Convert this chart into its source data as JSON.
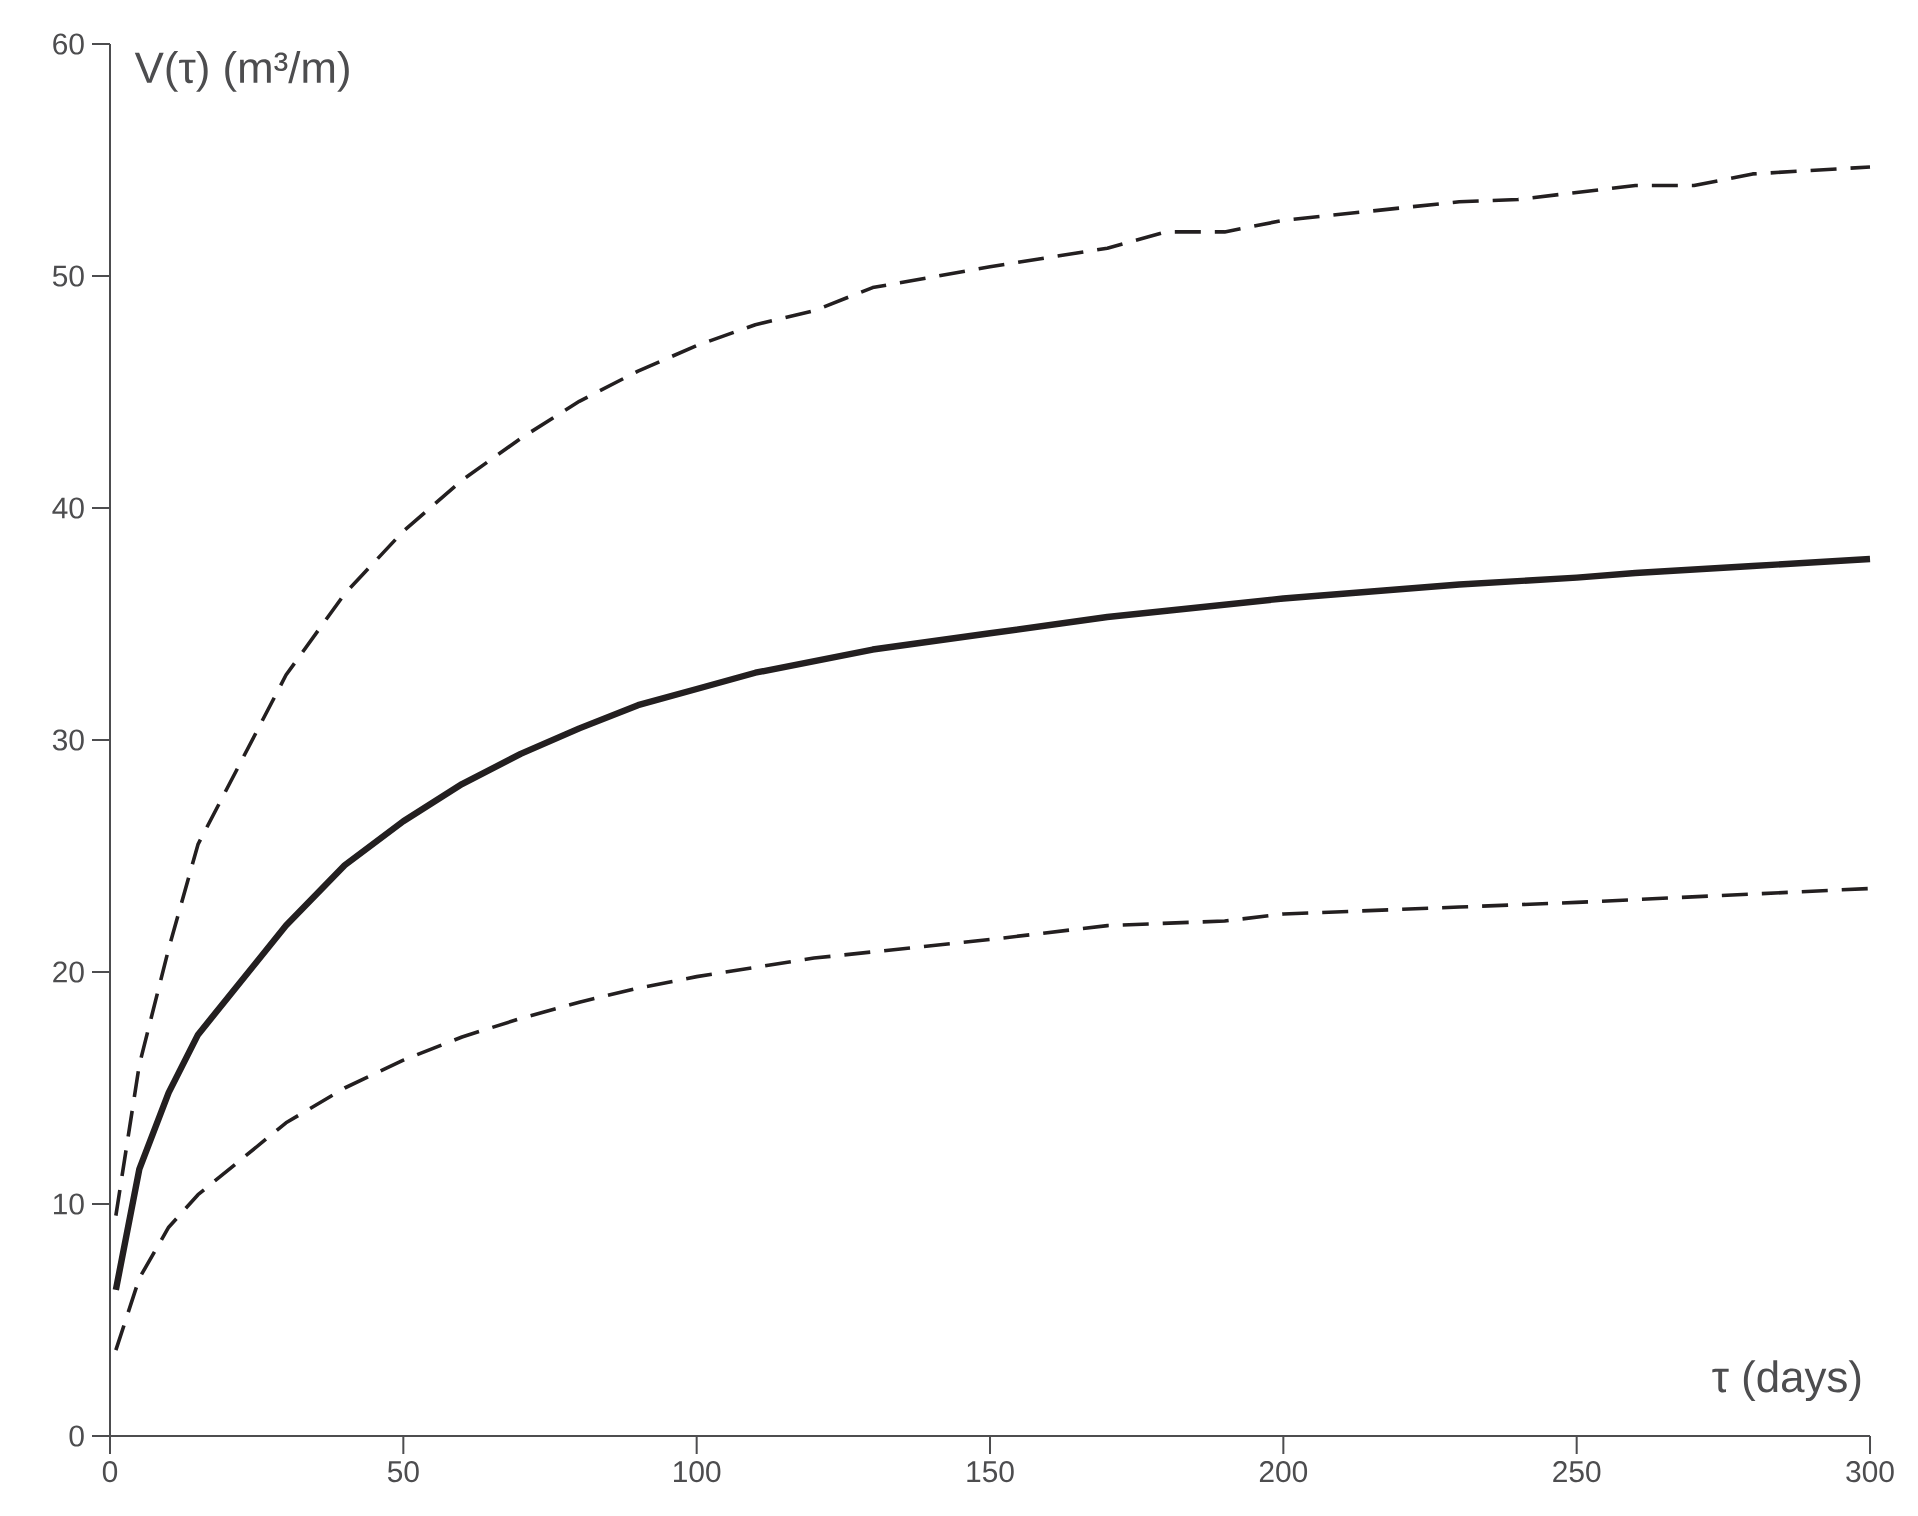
{
  "chart_data": {
    "type": "line",
    "xlabel": "τ (days)",
    "ylabel": "V(τ) (m³/m)",
    "xlim": [
      0,
      300
    ],
    "xticks": [
      0,
      50,
      100,
      150,
      200,
      250,
      300
    ],
    "ylim": [
      0,
      60
    ],
    "yticks": [
      0,
      10,
      20,
      30,
      40,
      50,
      60
    ],
    "marker": "none",
    "series": [
      {
        "color": "#231f20",
        "line_style": "dashed",
        "x": [
          1,
          5,
          10,
          15,
          30,
          40,
          50,
          60,
          70,
          80,
          90,
          100,
          110,
          120,
          130,
          150,
          170,
          180,
          190,
          200,
          230,
          240,
          260,
          270,
          280,
          300
        ],
        "values": [
          9.5,
          16,
          21,
          25.5,
          32.8,
          36.3,
          39,
          41.2,
          43,
          44.6,
          45.9,
          47,
          47.9,
          48.5,
          49.5,
          50.4,
          51.2,
          51.9,
          51.9,
          52.4,
          53.2,
          53.3,
          53.9,
          53.9,
          54.4,
          54.7
        ]
      },
      {
        "color": "#231f20",
        "line_style": "solid",
        "x": [
          1,
          5,
          10,
          15,
          30,
          40,
          50,
          60,
          70,
          80,
          90,
          100,
          110,
          120,
          130,
          150,
          170,
          200,
          230,
          250,
          260,
          280,
          300
        ],
        "values": [
          6.3,
          11.5,
          14.8,
          17.3,
          22,
          24.6,
          26.5,
          28.1,
          29.4,
          30.5,
          31.5,
          32.2,
          32.9,
          33.4,
          33.9,
          34.6,
          35.3,
          36.1,
          36.7,
          37,
          37.2,
          37.5,
          37.8
        ]
      },
      {
        "color": "#231f20",
        "line_style": "dashed",
        "x": [
          1,
          5,
          10,
          15,
          30,
          40,
          50,
          60,
          70,
          80,
          90,
          100,
          120,
          150,
          170,
          190,
          200,
          230,
          250,
          300
        ],
        "values": [
          3.7,
          6.8,
          9,
          10.4,
          13.5,
          15,
          16.2,
          17.2,
          18,
          18.7,
          19.3,
          19.8,
          20.6,
          21.4,
          22,
          22.2,
          22.5,
          22.8,
          23,
          23.6
        ]
      }
    ]
  }
}
